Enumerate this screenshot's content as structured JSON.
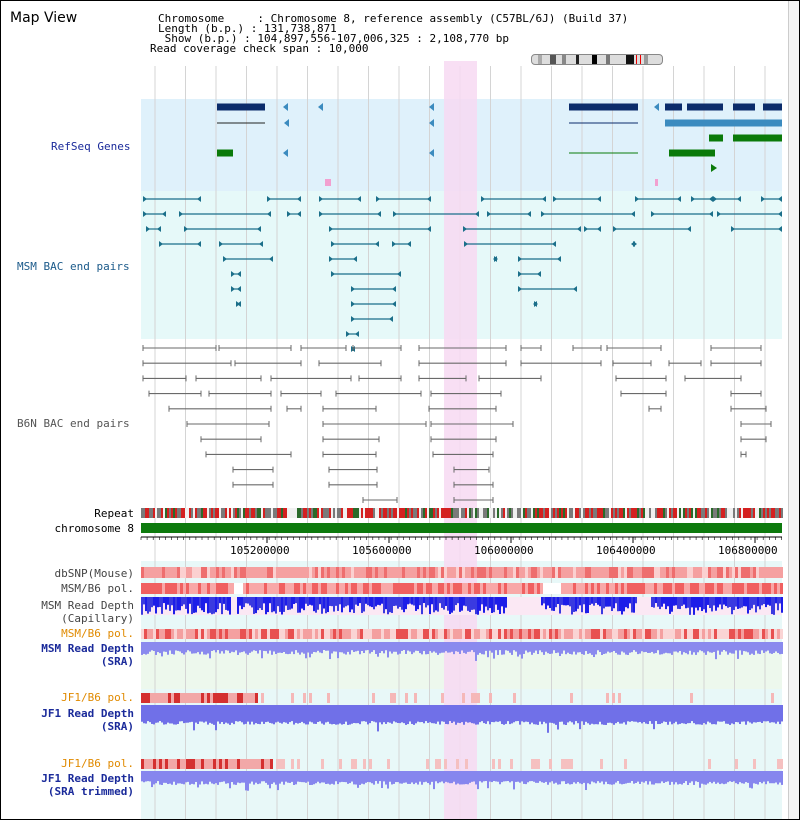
{
  "header": {
    "title": "Map View",
    "info_lines": [
      "Chromosome     : Chromosome 8, reference assembly (C57BL/6J) (Build 37)",
      "Length (b.p.) : 131,738,871",
      " Show (b.p.) : 104,897,556-107,006,325 : 2,108,770 bp",
      "Read coverage check span : 10,000"
    ]
  },
  "tracks": {
    "refseq": "RefSeq Genes",
    "msm_bac": "MSM BAC end pairs",
    "b6n_bac": "B6N BAC end pairs",
    "repeat": "Repeat",
    "chromosome": "chromosome 8",
    "dbsnp": "dbSNP(Mouse)",
    "msm_b6_pol_1": "MSM/B6 pol.",
    "msm_read_depth_cap_1": "MSM Read Depth",
    "msm_read_depth_cap_2": "(Capillary)",
    "msm_b6_pol_2": "MSM/B6 pol.",
    "msm_read_depth_sra_1": "MSM Read Depth",
    "msm_read_depth_sra_2": "(SRA)",
    "jf1_b6_pol_1": "JF1/B6 pol.",
    "jf1_read_depth_sra_1": "JF1 Read Depth",
    "jf1_read_depth_sra_2": "(SRA)",
    "jf1_b6_pol_2": "JF1/B6 pol.",
    "jf1_read_depth_trim_1": "JF1 Read Depth",
    "jf1_read_depth_trim_2": "(SRA trimmed)"
  },
  "axis": {
    "ticks": [
      "105200000",
      "105600000",
      "106000000",
      "106400000",
      "106800000"
    ]
  },
  "colors": {
    "refseq_bg": "#dff1fb",
    "msm_bg": "#e6f9f9",
    "highlight": "#f7d9f2",
    "gene_dark": "#0b2c6b",
    "gene_mid": "#3b8bbf",
    "gene_green": "#0a7a0a",
    "msm_pair": "#1b6f8a",
    "b6n_pair": "#6a6a6a",
    "chrom_green": "#0d7a0d",
    "label_blue": "#1a2a9a",
    "label_teal": "#1b5a8a",
    "label_orange": "#e08a00"
  }
}
